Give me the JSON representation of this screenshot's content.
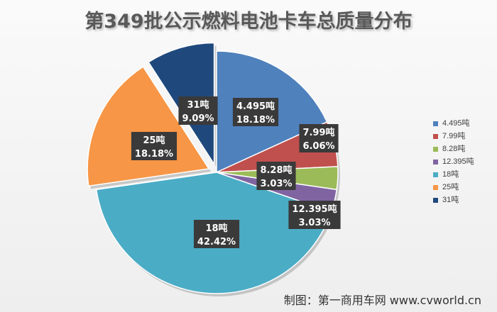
{
  "title": "第349批公示燃料电池卡车总质量分布",
  "credit": "制图：第一商用车网 www.cvworld.cn",
  "chart_data": {
    "type": "pie",
    "title": "第349批公示燃料电池卡车总质量分布",
    "legend_position": "right",
    "slices": [
      {
        "name": "4.495吨",
        "value": 18.18,
        "label": "4.495吨",
        "pct": "18.18%",
        "color": "#4f81bd",
        "exploded": false
      },
      {
        "name": "7.99吨",
        "value": 6.06,
        "label": "7.99吨",
        "pct": "6.06%",
        "color": "#c0504d",
        "exploded": false
      },
      {
        "name": "8.28吨",
        "value": 3.03,
        "label": "8.28吨",
        "pct": "3.03%",
        "color": "#9bbb59",
        "exploded": false
      },
      {
        "name": "12.395吨",
        "value": 3.03,
        "label": "12.395吨",
        "pct": "3.03%",
        "color": "#8064a2",
        "exploded": false
      },
      {
        "name": "18吨",
        "value": 42.42,
        "label": "18吨",
        "pct": "42.42%",
        "color": "#4bacc6",
        "exploded": false
      },
      {
        "name": "25吨",
        "value": 18.18,
        "label": "25吨",
        "pct": "18.18%",
        "color": "#f79646",
        "exploded": true
      },
      {
        "name": "31吨",
        "value": 9.09,
        "label": "31吨",
        "pct": "9.09%",
        "color": "#1f497d",
        "exploded": true
      }
    ]
  }
}
